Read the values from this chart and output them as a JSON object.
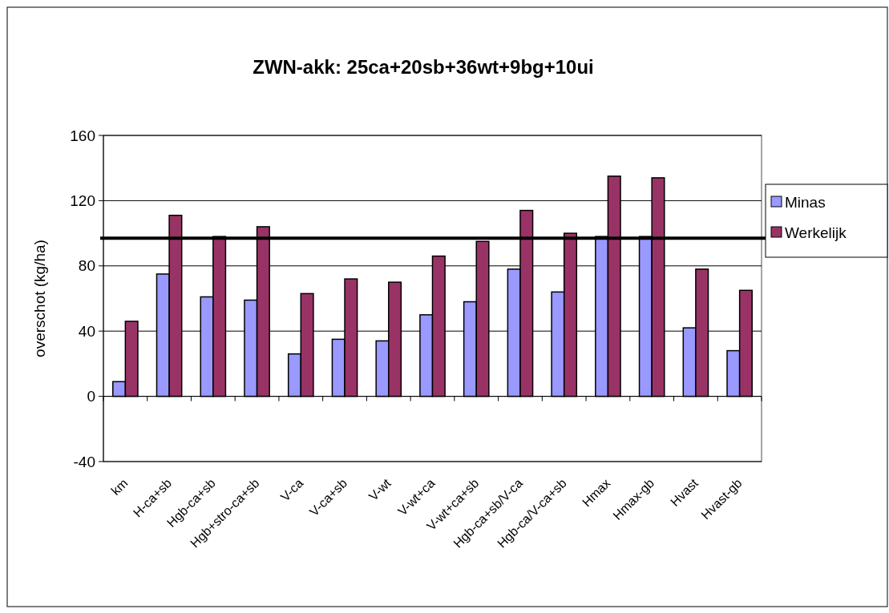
{
  "chart_data": {
    "type": "bar",
    "title": "ZWN-akk: 25ca+20sb+36wt+9bg+10ui",
    "ylabel": "overschot (kg/ha)",
    "categories": [
      "km",
      "H-ca+sb",
      "Hgb-ca+sb",
      "Hgb+stro-ca+sb",
      "V-ca",
      "V-ca+sb",
      "V-wt",
      "V-wt+ca",
      "V-wt+ca+sb",
      "Hgb-ca+sb/V-ca",
      "Hgb-ca/V-ca+sb",
      "Hmax",
      "Hmax-gb",
      "Hvast",
      "Hvast-gb"
    ],
    "series": [
      {
        "name": "Minas",
        "color": "#9999ff",
        "values": [
          9,
          75,
          61,
          59,
          26,
          35,
          34,
          50,
          58,
          78,
          64,
          98,
          98,
          42,
          28
        ]
      },
      {
        "name": "Werkelijk",
        "color": "#993366",
        "values": [
          46,
          111,
          98,
          104,
          63,
          72,
          70,
          86,
          95,
          114,
          100,
          135,
          134,
          78,
          65
        ]
      }
    ],
    "ylim": [
      -40,
      160
    ],
    "yticks": [
      -40,
      0,
      40,
      80,
      120,
      160
    ],
    "grid": "y",
    "legend": "right",
    "ref_lines": [
      {
        "axis": "y",
        "value": 97,
        "color": "#000000"
      }
    ]
  }
}
